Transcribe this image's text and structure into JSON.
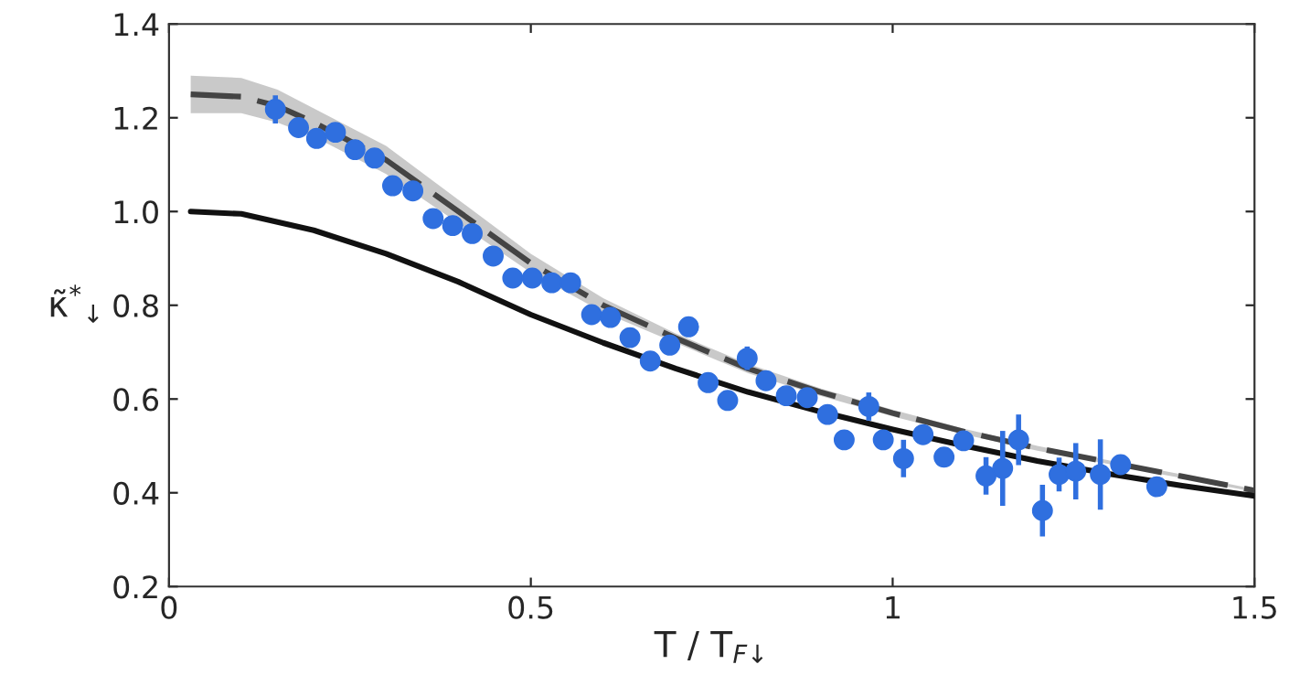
{
  "chart_data": {
    "type": "scatter",
    "xlabel": "T / T$_{F↓}$",
    "ylabel": "κ̃$^{*}$$_{↓}$",
    "xlim": [
      0,
      1.5
    ],
    "ylim": [
      0.2,
      1.4
    ],
    "xticks": [
      0,
      0.5,
      1,
      1.5
    ],
    "yticks": [
      {
        "value": 0.2,
        "label": "0.2"
      },
      {
        "value": 0.4,
        "label": "0.4"
      },
      {
        "value": 0.6,
        "label": "0.6"
      },
      {
        "value": 0.8,
        "label": "0.8"
      },
      {
        "value": 1.0,
        "label": "1.0"
      },
      {
        "value": 1.2,
        "label": "1.2"
      },
      {
        "value": 1.4,
        "label": "1.4"
      }
    ],
    "grid": false,
    "legend": false,
    "series": [
      {
        "type": "line",
        "color": "#444444",
        "line_style": "dashed",
        "x": [
          0.03,
          0.1,
          0.15,
          0.2,
          0.3,
          0.4,
          0.5,
          0.6,
          0.7,
          0.8,
          0.9,
          1.0,
          1.1,
          1.2,
          1.3,
          1.4,
          1.5
        ],
        "values": [
          1.25,
          1.245,
          1.225,
          1.19,
          1.11,
          1.0,
          0.89,
          0.8,
          0.73,
          0.665,
          0.615,
          0.57,
          0.53,
          0.495,
          0.465,
          0.435,
          0.405
        ],
        "lower": [
          1.21,
          1.21,
          1.19,
          1.16,
          1.08,
          0.975,
          0.87,
          0.785,
          0.72,
          0.655,
          0.607,
          0.563,
          0.524,
          0.49,
          0.461,
          0.431,
          0.402
        ],
        "upper": [
          1.29,
          1.285,
          1.26,
          1.22,
          1.14,
          1.025,
          0.91,
          0.815,
          0.74,
          0.675,
          0.623,
          0.577,
          0.536,
          0.5,
          0.469,
          0.439,
          0.408
        ]
      },
      {
        "type": "line",
        "color": "#111111",
        "line_style": "solid",
        "x": [
          0.03,
          0.1,
          0.2,
          0.3,
          0.4,
          0.5,
          0.6,
          0.7,
          0.8,
          0.9,
          1.0,
          1.1,
          1.2,
          1.3,
          1.4,
          1.5
        ],
        "values": [
          1.0,
          0.995,
          0.96,
          0.91,
          0.85,
          0.78,
          0.72,
          0.665,
          0.615,
          0.573,
          0.535,
          0.5,
          0.468,
          0.44,
          0.415,
          0.393
        ]
      },
      {
        "color": "#2f6fdf",
        "marker": "circle",
        "x": [
          0.147,
          0.179,
          0.204,
          0.23,
          0.257,
          0.284,
          0.309,
          0.337,
          0.365,
          0.392,
          0.419,
          0.448,
          0.475,
          0.502,
          0.529,
          0.555,
          0.584,
          0.61,
          0.637,
          0.665,
          0.692,
          0.718,
          0.745,
          0.772,
          0.799,
          0.825,
          0.853,
          0.882,
          0.91,
          0.933,
          0.967,
          0.987,
          1.015,
          1.042,
          1.071,
          1.098,
          1.129,
          1.152,
          1.174,
          1.207,
          1.23,
          1.253,
          1.287,
          1.315,
          1.365
        ],
        "values": [
          1.218,
          1.179,
          1.156,
          1.169,
          1.132,
          1.114,
          1.055,
          1.044,
          0.985,
          0.97,
          0.953,
          0.905,
          0.858,
          0.858,
          0.848,
          0.848,
          0.78,
          0.774,
          0.731,
          0.681,
          0.715,
          0.754,
          0.635,
          0.597,
          0.687,
          0.639,
          0.607,
          0.603,
          0.567,
          0.513,
          0.584,
          0.513,
          0.473,
          0.524,
          0.476,
          0.511,
          0.436,
          0.452,
          0.513,
          0.362,
          0.439,
          0.446,
          0.439,
          0.46,
          0.413
        ],
        "errors": [
          0.03,
          0.015,
          0.015,
          0.015,
          0.015,
          0.015,
          0.015,
          0.015,
          0.015,
          0.015,
          0.015,
          0.015,
          0.015,
          0.015,
          0.015,
          0.015,
          0.015,
          0.015,
          0.015,
          0.015,
          0.015,
          0.015,
          0.015,
          0.02,
          0.025,
          0.015,
          0.015,
          0.015,
          0.02,
          0.02,
          0.03,
          0.02,
          0.04,
          0.02,
          0.02,
          0.02,
          0.04,
          0.08,
          0.054,
          0.055,
          0.036,
          0.06,
          0.075,
          0.02,
          0.015
        ]
      }
    ]
  }
}
